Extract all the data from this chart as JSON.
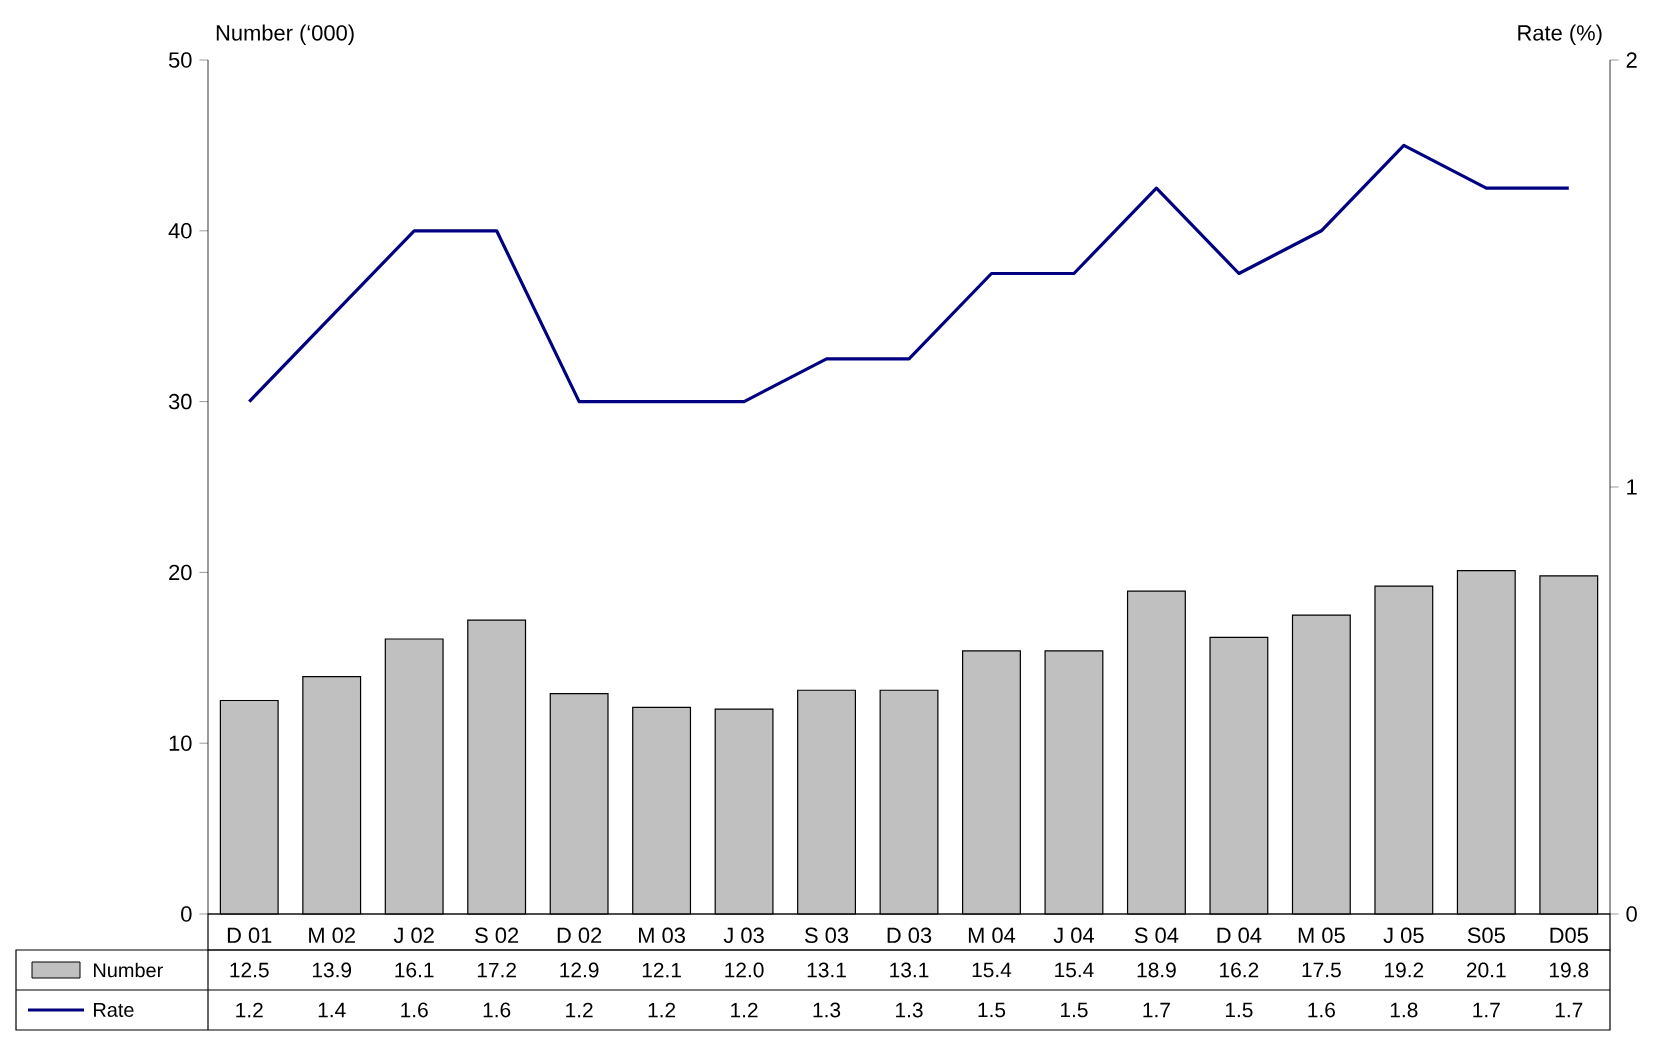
{
  "chart_data": {
    "type": "bar",
    "ylabel": "Number (‘000)",
    "y2label": "Rate (%)",
    "categories": [
      "D 01",
      "M 02",
      "J 02",
      "S 02",
      "D 02",
      "M 03",
      "J 03",
      "S 03",
      "D 03",
      "M 04",
      "J 04",
      "S 04",
      "D 04",
      "M 05",
      "J 05",
      "S05",
      "D05"
    ],
    "series": [
      {
        "name": "Number",
        "color": "#c0c0c0",
        "values": [
          12.5,
          13.9,
          16.1,
          17.2,
          12.9,
          12.1,
          12.0,
          13.1,
          13.1,
          15.4,
          15.4,
          18.9,
          16.2,
          17.5,
          19.2,
          20.1,
          19.8
        ],
        "value_labels": [
          "12.5",
          "13.9",
          "16.1",
          "17.2",
          "12.9",
          "12.1",
          "12.0",
          "13.1",
          "13.1",
          "15.4",
          "15.4",
          "18.9",
          "16.2",
          "17.5",
          "19.2",
          "20.1",
          "19.8"
        ]
      },
      {
        "name": "Rate",
        "type": "line",
        "axis": "y2",
        "color": "#000080",
        "values": [
          1.2,
          1.4,
          1.6,
          1.6,
          1.2,
          1.2,
          1.2,
          1.3,
          1.3,
          1.5,
          1.5,
          1.7,
          1.5,
          1.6,
          1.8,
          1.7,
          1.7
        ],
        "value_labels": [
          "1.2",
          "1.4",
          "1.6",
          "1.6",
          "1.2",
          "1.2",
          "1.2",
          "1.3",
          "1.3",
          "1.5",
          "1.5",
          "1.7",
          "1.5",
          "1.6",
          "1.8",
          "1.7",
          "1.7"
        ]
      }
    ],
    "ylim": [
      0,
      50
    ],
    "yticks": [
      0,
      10,
      20,
      30,
      40,
      50
    ],
    "y2lim": [
      0,
      2
    ],
    "y2ticks": [
      0,
      1,
      2
    ],
    "grid": false,
    "legend": "bottom left",
    "marker": "none",
    "line_style": "solid"
  }
}
